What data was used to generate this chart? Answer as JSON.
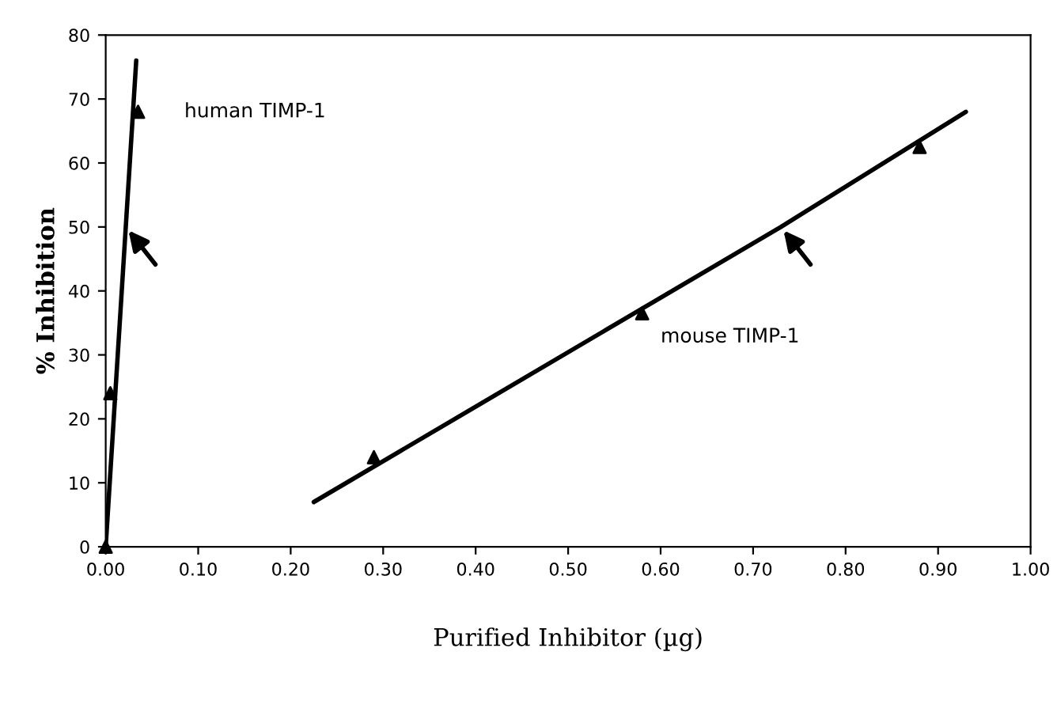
{
  "chart_data": {
    "type": "scatter",
    "xlabel": "Purified Inhibitor (µg)",
    "ylabel": "% Inhibition",
    "series": [
      {
        "type": "scatter",
        "marker": "triangle",
        "color": "#000000",
        "x": [
          0.0,
          0.005,
          0.035
        ],
        "values": [
          0,
          24,
          68
        ]
      },
      {
        "type": "line",
        "color": "#000000",
        "x": [
          0.0,
          0.0217,
          0.033
        ],
        "values": [
          0,
          50,
          76
        ]
      },
      {
        "marker": "triangle",
        "color": "#000000",
        "x": [
          0.29,
          0.58,
          0.88
        ],
        "values": [
          14,
          36.5,
          62.5
        ]
      },
      {
        "type": "line",
        "color": "#000000",
        "x": [
          0.225,
          0.73,
          0.93
        ],
        "values": [
          7,
          50,
          68
        ]
      }
    ],
    "annotations": [
      "human TIMP-1",
      "mouse TIMP-1"
    ],
    "xlim": [
      0,
      1
    ],
    "ylim": [
      0,
      80
    ],
    "xticks": [
      {
        "value": 0,
        "label": "0.00"
      },
      {
        "value": 0.1,
        "label": "0.10"
      },
      {
        "value": 0.2,
        "label": "0.20"
      },
      {
        "value": 0.3,
        "label": "0.30"
      },
      {
        "value": 0.4,
        "label": "0.40"
      },
      {
        "value": 0.5,
        "label": "0.50"
      },
      {
        "value": 0.6,
        "label": "0.60"
      },
      {
        "value": 0.7,
        "label": "0.70"
      },
      {
        "value": 0.8,
        "label": "0.80"
      },
      {
        "value": 0.9,
        "label": "0.90"
      },
      {
        "value": 1,
        "label": "1.00"
      }
    ],
    "yticks": [
      0,
      10,
      20,
      30,
      40,
      50,
      60,
      70,
      80
    ],
    "grid": false
  }
}
